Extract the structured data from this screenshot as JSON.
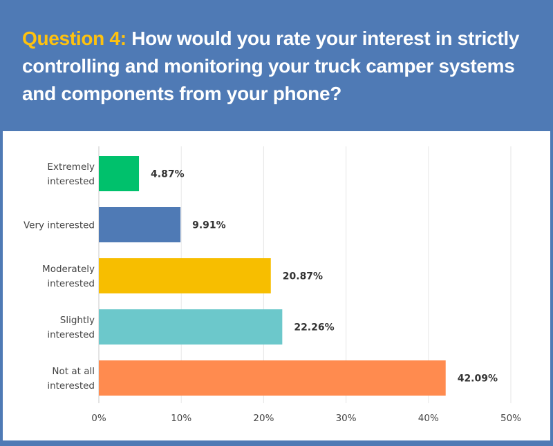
{
  "header": {
    "question_label": "Question 4:",
    "question_text": "How would you rate your interest in strictly controlling and monitoring your truck camper systems and components from your phone?"
  },
  "colors": {
    "background": "#4f7ab5",
    "question_label": "#ffc20e",
    "panel": "#ffffff"
  },
  "chart_data": {
    "type": "bar",
    "orientation": "horizontal",
    "title": "",
    "xlabel": "",
    "ylabel": "",
    "categories": [
      [
        "Extremely",
        "interested"
      ],
      [
        "Very interested"
      ],
      [
        "Moderately",
        "interested"
      ],
      [
        "Slightly",
        "interested"
      ],
      [
        "Not at all",
        "interested"
      ]
    ],
    "values": [
      4.87,
      9.91,
      20.87,
      22.26,
      42.09
    ],
    "value_labels": [
      "4.87%",
      "9.91%",
      "20.87%",
      "22.26%",
      "42.09%"
    ],
    "colors": [
      "#00c16c",
      "#4f7ab5",
      "#f7be00",
      "#6cc8cb",
      "#ff8b4f"
    ],
    "xlim": [
      0,
      50
    ],
    "xticks": [
      0,
      10,
      20,
      30,
      40,
      50
    ],
    "xtick_labels": [
      "0%",
      "10%",
      "20%",
      "30%",
      "40%",
      "50%"
    ],
    "grid": true
  }
}
